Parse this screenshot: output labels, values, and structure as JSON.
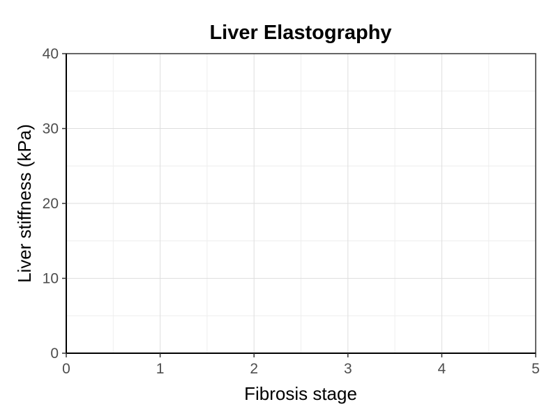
{
  "chart_data": {
    "type": "scatter",
    "title": "Liver Elastography",
    "xlabel": "Fibrosis stage",
    "ylabel": "Liver stiffness (kPa)",
    "xlim": [
      0,
      5
    ],
    "ylim": [
      0,
      40
    ],
    "x_ticks": [
      "0",
      "1",
      "2",
      "3",
      "4",
      "5"
    ],
    "y_ticks": [
      "0",
      "10",
      "20",
      "30",
      "40"
    ],
    "series": [],
    "grid": true,
    "legend": "none"
  },
  "colors": {
    "grid_major": "#dedede",
    "grid_minor": "#eeeeee",
    "axis": "#000000",
    "tick_text": "#4d4d4d"
  }
}
